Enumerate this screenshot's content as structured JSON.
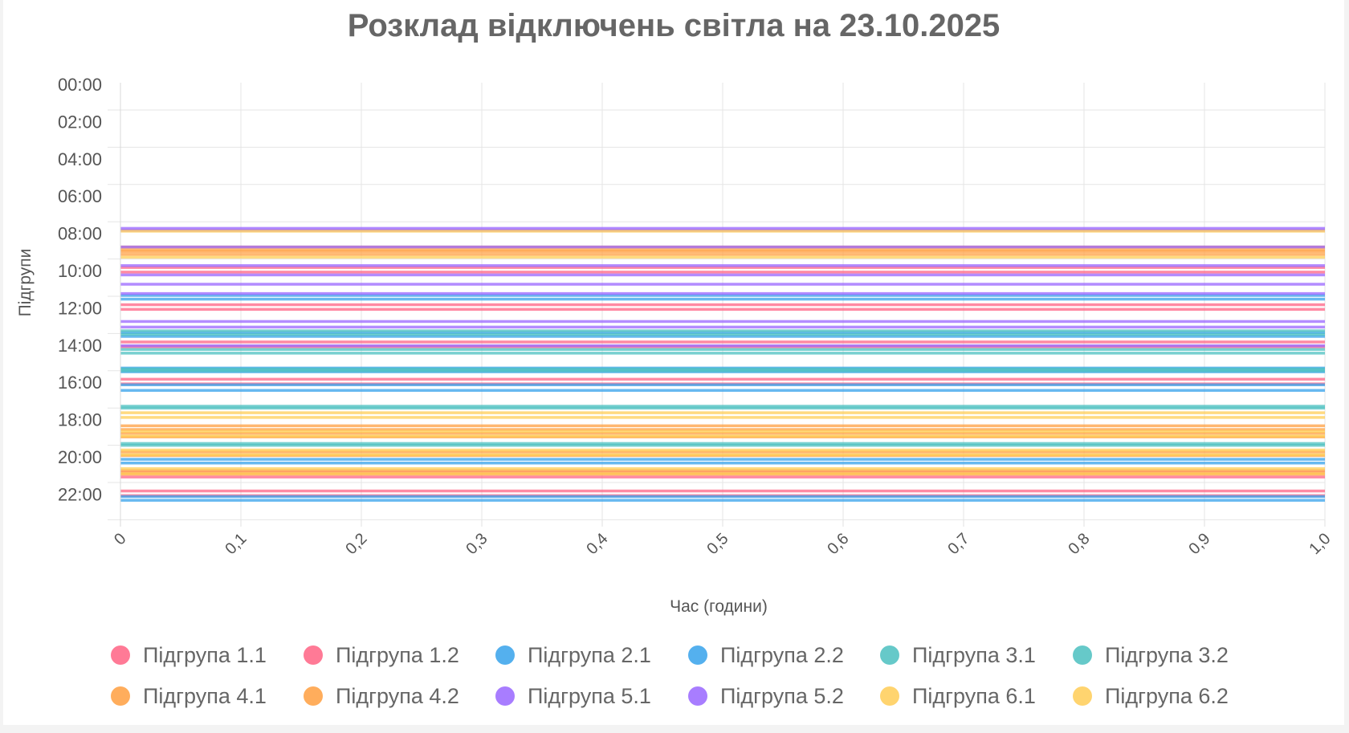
{
  "chart_data": {
    "type": "bar",
    "orientation": "horizontal",
    "title": "Розклад відключень світла на 23.10.2025",
    "xlabel": "Час (години)",
    "ylabel": "Підгрупи",
    "xlim": [
      0,
      1
    ],
    "x_ticks": [
      "0",
      "0,1",
      "0,2",
      "0,3",
      "0,4",
      "0,5",
      "0,6",
      "0,7",
      "0,8",
      "0,9",
      "1,0"
    ],
    "y_range": [
      0,
      24
    ],
    "y_ticks": [
      {
        "value": 0,
        "label": "00:00"
      },
      {
        "value": 2,
        "label": "02:00"
      },
      {
        "value": 4,
        "label": "04:00"
      },
      {
        "value": 6,
        "label": "06:00"
      },
      {
        "value": 8,
        "label": "08:00"
      },
      {
        "value": 10,
        "label": "10:00"
      },
      {
        "value": 12,
        "label": "12:00"
      },
      {
        "value": 14,
        "label": "14:00"
      },
      {
        "value": 16,
        "label": "16:00"
      },
      {
        "value": 18,
        "label": "18:00"
      },
      {
        "value": 20,
        "label": "20:00"
      },
      {
        "value": 22,
        "label": "22:00"
      }
    ],
    "grid": true,
    "legend_position": "bottom",
    "series": [
      {
        "name": "Підгрупа 1.1",
        "color": "#ff6384",
        "hours": [
          9.5,
          11.5,
          13.5,
          15.5,
          20.5,
          21.5
        ]
      },
      {
        "name": "Підгрупа 1.2",
        "color": "#ff6384",
        "hours": [
          9.75,
          11.75,
          13.75,
          15.75,
          20.75,
          21.75
        ]
      },
      {
        "name": "Підгрупа 2.1",
        "color": "#36a2eb",
        "hours": [
          11,
          13,
          14.9,
          15.8,
          19.8,
          21.8
        ]
      },
      {
        "name": "Підгрупа 2.2",
        "color": "#36a2eb",
        "hours": [
          11.2,
          13.2,
          15.1,
          16.1,
          20,
          22
        ]
      },
      {
        "name": "Підгрупа 3.1",
        "color": "#4bc0c0",
        "hours": [
          12.9,
          13.9,
          14.95,
          16.95,
          18.95
        ]
      },
      {
        "name": "Підгрупа 3.2",
        "color": "#4bc0c0",
        "hours": [
          13.1,
          14.1,
          15.05,
          17.05,
          19.05
        ]
      },
      {
        "name": "Підгрупа 4.1",
        "color": "#ff9f40",
        "hours": [
          8.4,
          8.65,
          18,
          18.4,
          19.4,
          20.4
        ]
      },
      {
        "name": "Підгрупа 4.2",
        "color": "#ff9f40",
        "hours": [
          8.55,
          8.8,
          18.2,
          18.6,
          19.6,
          20.6
        ]
      },
      {
        "name": "Підгрупа 5.1",
        "color": "#9966ff",
        "hours": [
          7.4,
          8.4,
          9.4,
          10.4,
          12.4
        ]
      },
      {
        "name": "Підгрупа 5.2",
        "color": "#9966ff",
        "hours": [
          7.5,
          9.9,
          10.9,
          12.7,
          13.7
        ]
      },
      {
        "name": "Підгрупа 6.1",
        "color": "#ffcd56",
        "hours": [
          7.55,
          17.3,
          18.3,
          19.3,
          20.3
        ]
      },
      {
        "name": "Підгрупа 6.2",
        "color": "#ffcd56",
        "hours": [
          8.95,
          17.55,
          18.55,
          19.55,
          20.55
        ]
      }
    ]
  }
}
